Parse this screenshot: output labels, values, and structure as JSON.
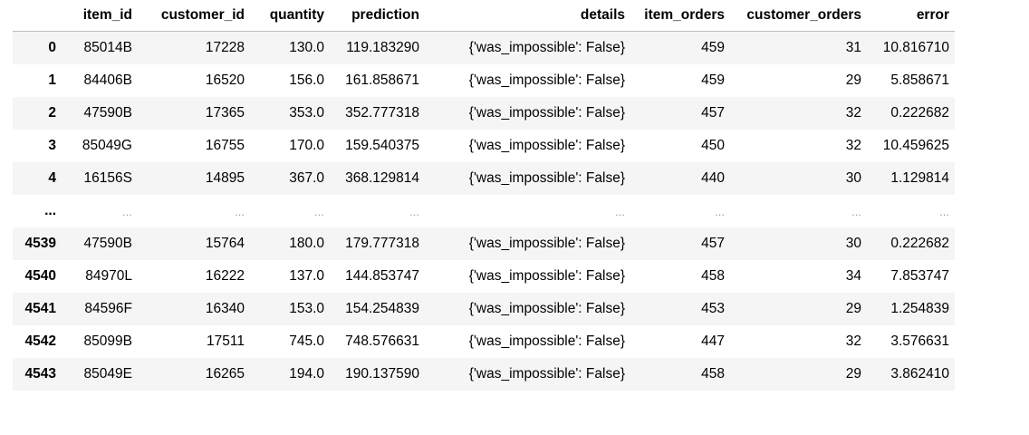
{
  "table": {
    "index_header": "",
    "columns": [
      "item_id",
      "customer_id",
      "quantity",
      "prediction",
      "details",
      "item_orders",
      "customer_orders",
      "error"
    ],
    "rows": [
      {
        "index": "0",
        "cells": [
          "85014B",
          "17228",
          "130.0",
          "119.183290",
          "{'was_impossible': False}",
          "459",
          "31",
          "10.816710"
        ]
      },
      {
        "index": "1",
        "cells": [
          "84406B",
          "16520",
          "156.0",
          "161.858671",
          "{'was_impossible': False}",
          "459",
          "29",
          "5.858671"
        ]
      },
      {
        "index": "2",
        "cells": [
          "47590B",
          "17365",
          "353.0",
          "352.777318",
          "{'was_impossible': False}",
          "457",
          "32",
          "0.222682"
        ]
      },
      {
        "index": "3",
        "cells": [
          "85049G",
          "16755",
          "170.0",
          "159.540375",
          "{'was_impossible': False}",
          "450",
          "32",
          "10.459625"
        ]
      },
      {
        "index": "4",
        "cells": [
          "16156S",
          "14895",
          "367.0",
          "368.129814",
          "{'was_impossible': False}",
          "440",
          "30",
          "1.129814"
        ]
      },
      {
        "index": "...",
        "cells": [
          "...",
          "...",
          "...",
          "...",
          "...",
          "...",
          "...",
          "..."
        ]
      },
      {
        "index": "4539",
        "cells": [
          "47590B",
          "15764",
          "180.0",
          "179.777318",
          "{'was_impossible': False}",
          "457",
          "30",
          "0.222682"
        ]
      },
      {
        "index": "4540",
        "cells": [
          "84970L",
          "16222",
          "137.0",
          "144.853747",
          "{'was_impossible': False}",
          "458",
          "34",
          "7.853747"
        ]
      },
      {
        "index": "4541",
        "cells": [
          "84596F",
          "16340",
          "153.0",
          "154.254839",
          "{'was_impossible': False}",
          "453",
          "29",
          "1.254839"
        ]
      },
      {
        "index": "4542",
        "cells": [
          "85099B",
          "17511",
          "745.0",
          "748.576631",
          "{'was_impossible': False}",
          "447",
          "32",
          "3.576631"
        ]
      },
      {
        "index": "4543",
        "cells": [
          "85049E",
          "16265",
          "194.0",
          "190.137590",
          "{'was_impossible': False}",
          "458",
          "29",
          "3.862410"
        ]
      }
    ]
  }
}
